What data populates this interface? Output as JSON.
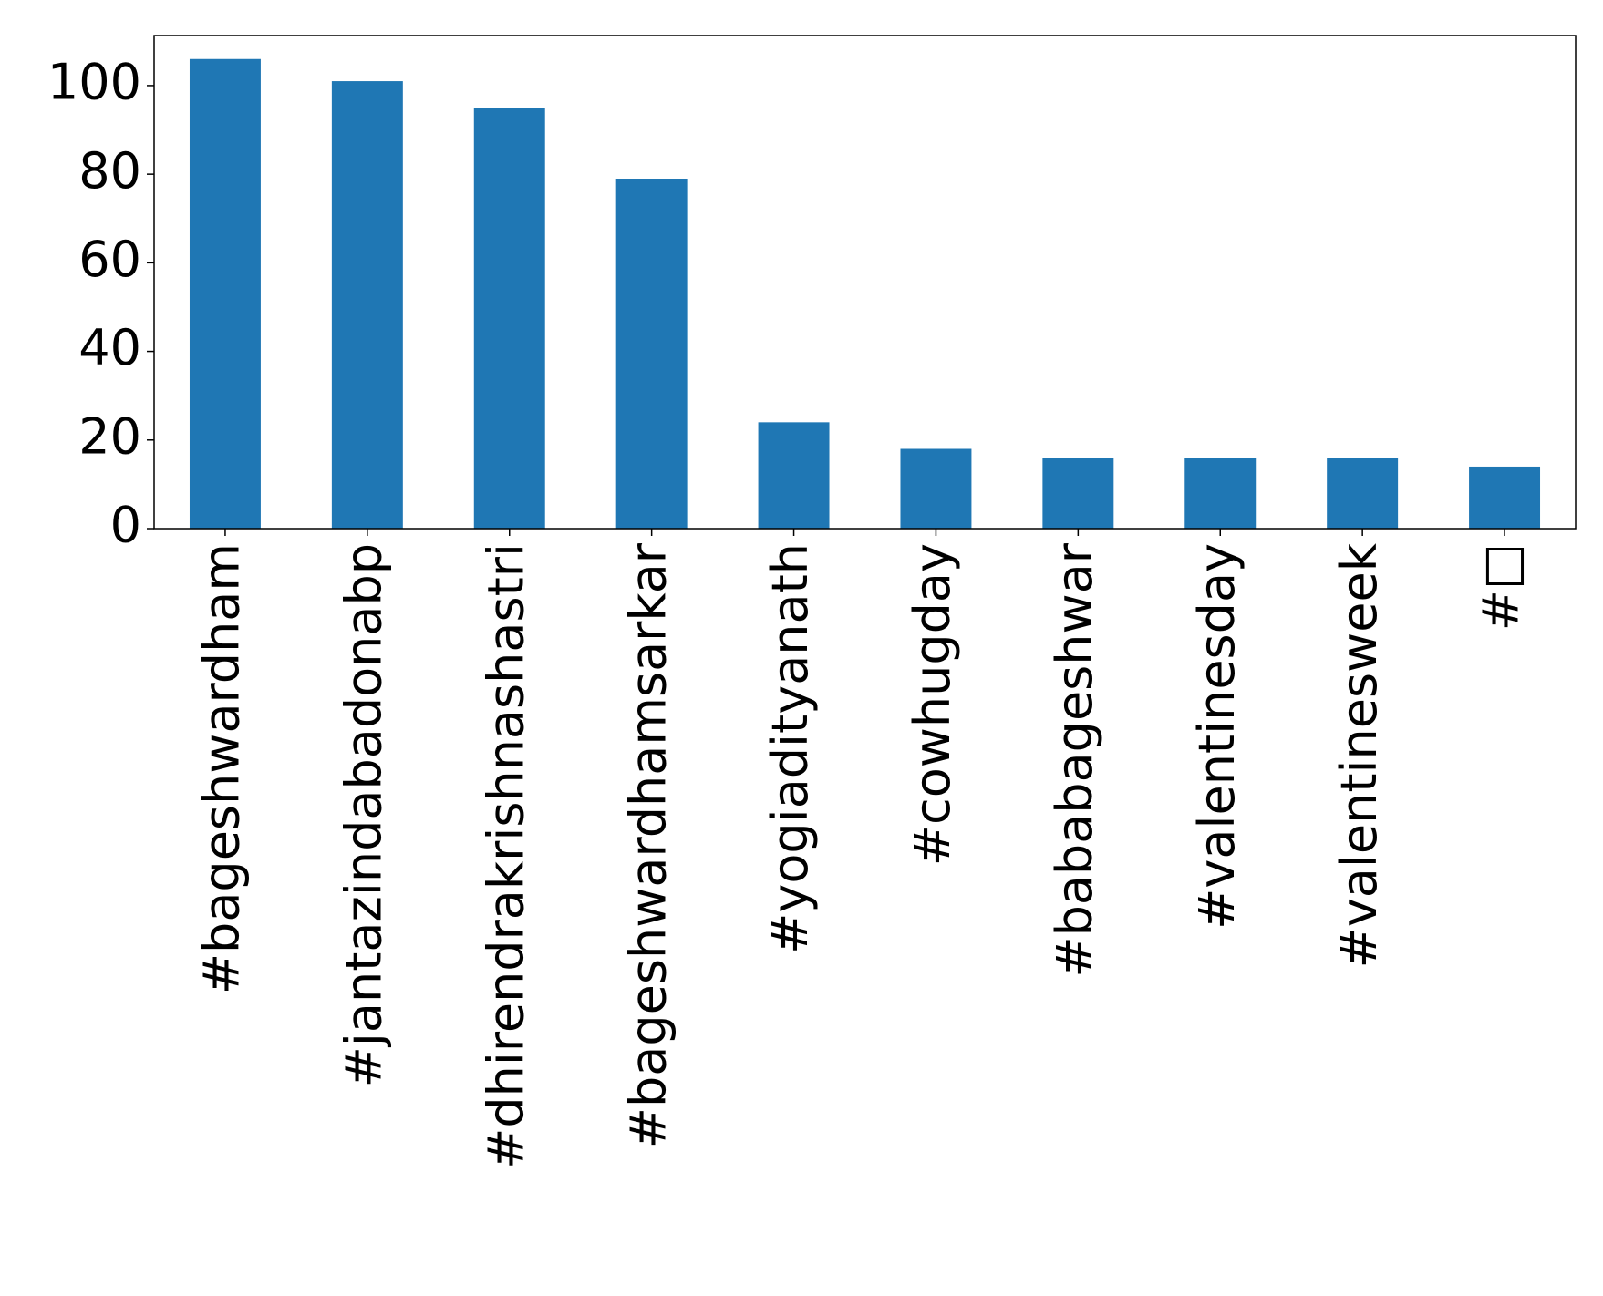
{
  "chart_data": {
    "type": "bar",
    "categories": [
      "#bageshwardham",
      "#jantazindabadonabp",
      "#dhirendrakrishnashastri",
      "#bageshwardhamsarkar",
      "#yogiadityanath",
      "#cowhugday",
      "#bababageshwar",
      "#valentinesday",
      "#valentinesweek",
      "#□"
    ],
    "values": [
      106,
      101,
      95,
      79,
      24,
      18,
      16,
      16,
      16,
      14
    ],
    "color": "#1f77b4",
    "ylim": [
      0,
      111.3
    ],
    "yticks": [
      0,
      20,
      40,
      60,
      80,
      100
    ],
    "grid": false
  }
}
